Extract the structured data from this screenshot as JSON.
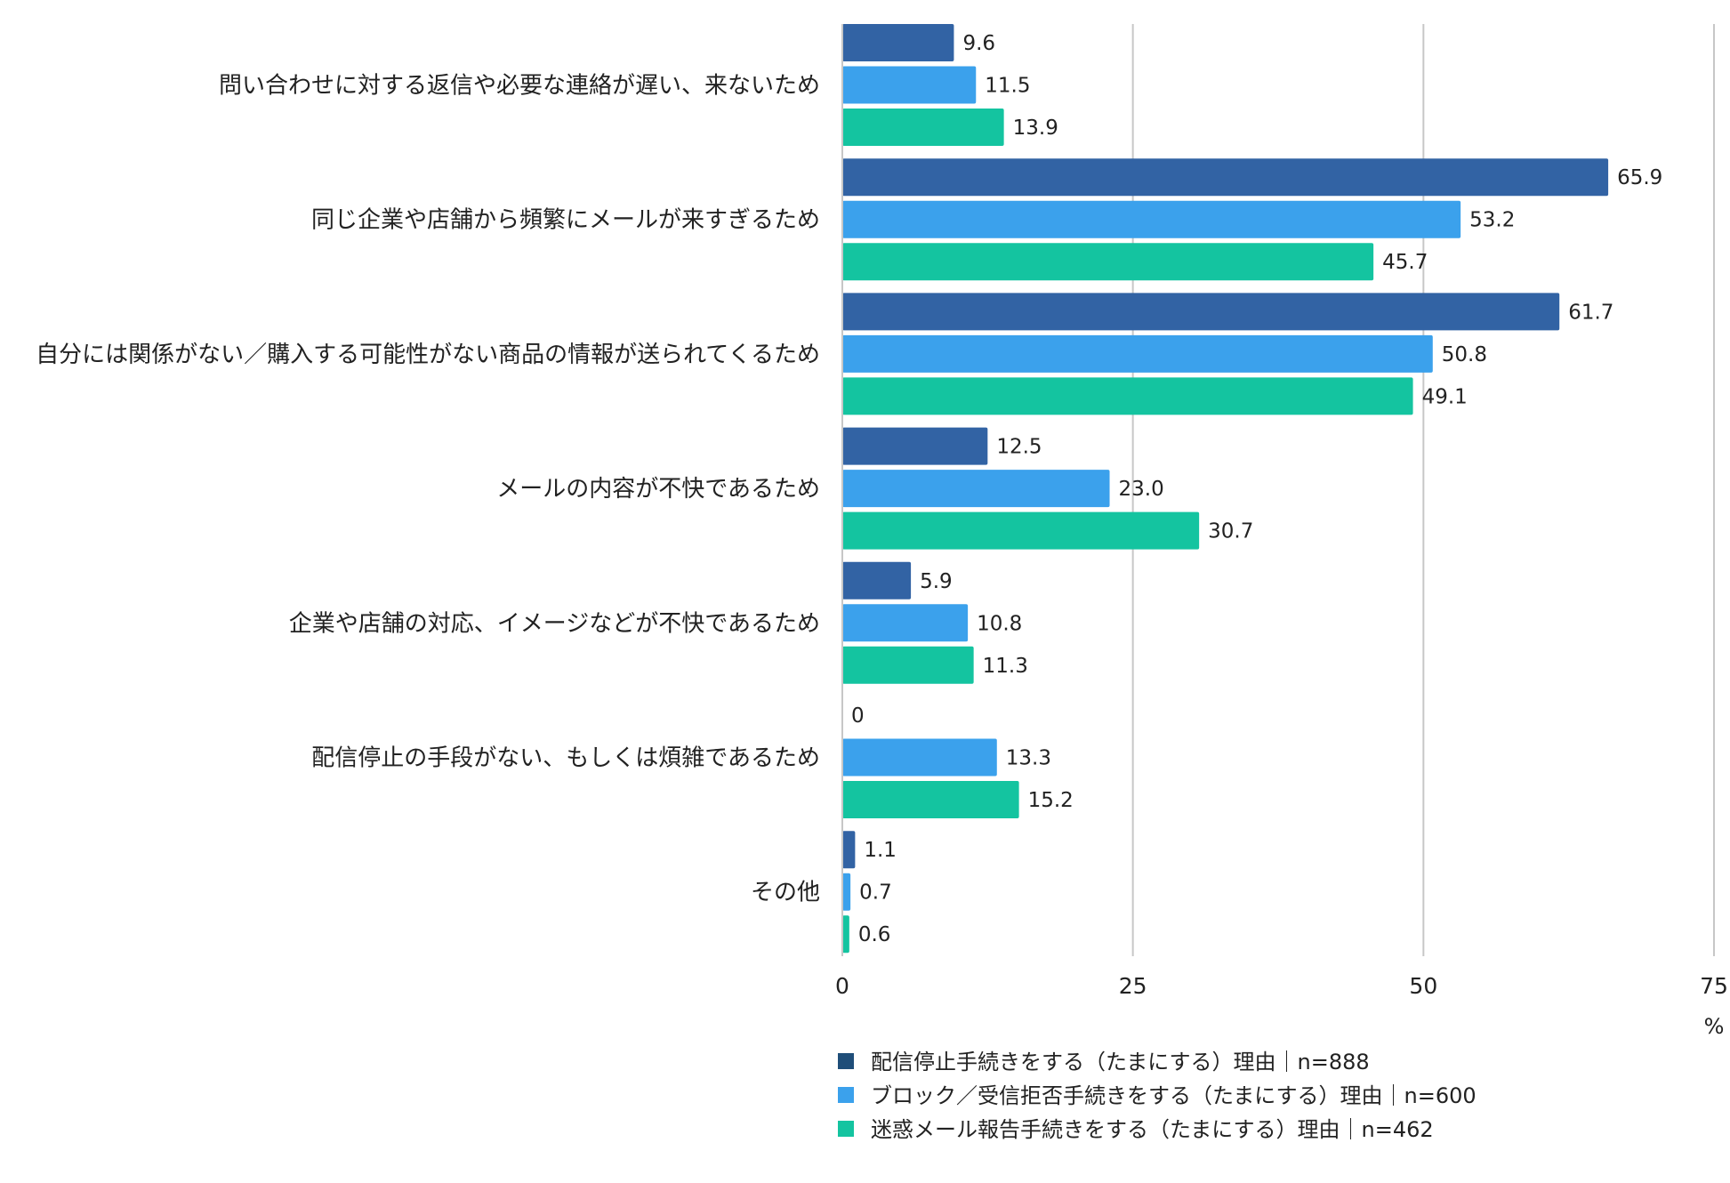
{
  "chart_data": {
    "type": "bar",
    "orientation": "horizontal",
    "categories": [
      "問い合わせに対する返信や必要な連絡が遅い、来ないため",
      "同じ企業や店舗から頻繁にメールが来すぎるため",
      "自分には関係がない／購入する可能性がない商品の情報が送られてくるため",
      "メールの内容が不快であるため",
      "企業や店舗の対応、イメージなどが不快であるため",
      "配信停止の手段がない、もしくは煩雑であるため",
      "その他"
    ],
    "series": [
      {
        "name": "配信停止手続きをする（たまにする）理由｜n=888",
        "color": "#3263a4",
        "values": [
          9.6,
          65.9,
          61.7,
          12.5,
          5.9,
          0,
          1.1
        ],
        "labels": [
          "9.6",
          "65.9",
          "61.7",
          "12.5",
          "5.9",
          "0",
          "1.1"
        ]
      },
      {
        "name": "ブロック／受信拒否手続きをする（たまにする）理由｜n=600",
        "color": "#3ba1ec",
        "values": [
          11.5,
          53.2,
          50.8,
          23.0,
          10.8,
          13.3,
          0.7
        ],
        "labels": [
          "11.5",
          "53.2",
          "50.8",
          "23.0",
          "10.8",
          "13.3",
          "0.7"
        ]
      },
      {
        "name": "迷惑メール報告手続きをする（たまにする）理由｜n=462",
        "color": "#14c4a0",
        "values": [
          13.9,
          45.7,
          49.1,
          30.7,
          11.3,
          15.2,
          0.6
        ],
        "labels": [
          "13.9",
          "45.7",
          "49.1",
          "30.7",
          "11.3",
          "15.2",
          "0.6"
        ]
      }
    ],
    "xlim": [
      0,
      75
    ],
    "xticks": [
      0,
      25,
      50,
      75
    ],
    "xtick_labels": [
      "0",
      "25",
      "50",
      "75"
    ],
    "unit": "%",
    "grid": "vertical",
    "legend_position": "bottom",
    "legend_marker_colors": [
      "#1f4e79",
      "#3ba1ec",
      "#14c4a0"
    ]
  }
}
